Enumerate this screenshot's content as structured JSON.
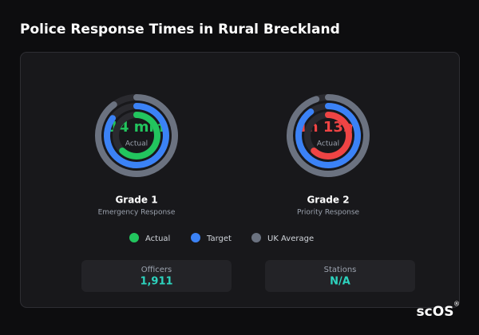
{
  "header": {
    "title": "Police Response Times in Rural Breckland"
  },
  "gauges": [
    {
      "value_label": "14 min",
      "value_color": "#22c55e",
      "caption": "Actual",
      "name": "Grade 1",
      "subtitle": "Emergency Response",
      "rings": [
        {
          "color": "#22c55e",
          "fraction": 0.62
        },
        {
          "color": "#3b82f6",
          "fraction": 0.85
        },
        {
          "color": "#6b7280",
          "fraction": 0.9
        }
      ]
    },
    {
      "value_label": "1h 13m",
      "value_color": "#ef4444",
      "caption": "Actual",
      "name": "Grade 2",
      "subtitle": "Priority Response",
      "rings": [
        {
          "color": "#ef4444",
          "fraction": 0.62
        },
        {
          "color": "#3b82f6",
          "fraction": 0.9
        },
        {
          "color": "#6b7280",
          "fraction": 0.95
        }
      ]
    }
  ],
  "legend": [
    {
      "label": "Actual",
      "color": "#22c55e"
    },
    {
      "label": "Target",
      "color": "#3b82f6"
    },
    {
      "label": "UK Average",
      "color": "#6b7280"
    }
  ],
  "stats": [
    {
      "label": "Officers",
      "value": "1,911"
    },
    {
      "label": "Stations",
      "value": "N/A"
    }
  ],
  "footer": {
    "brand": "scOS",
    "mark": "®"
  }
}
